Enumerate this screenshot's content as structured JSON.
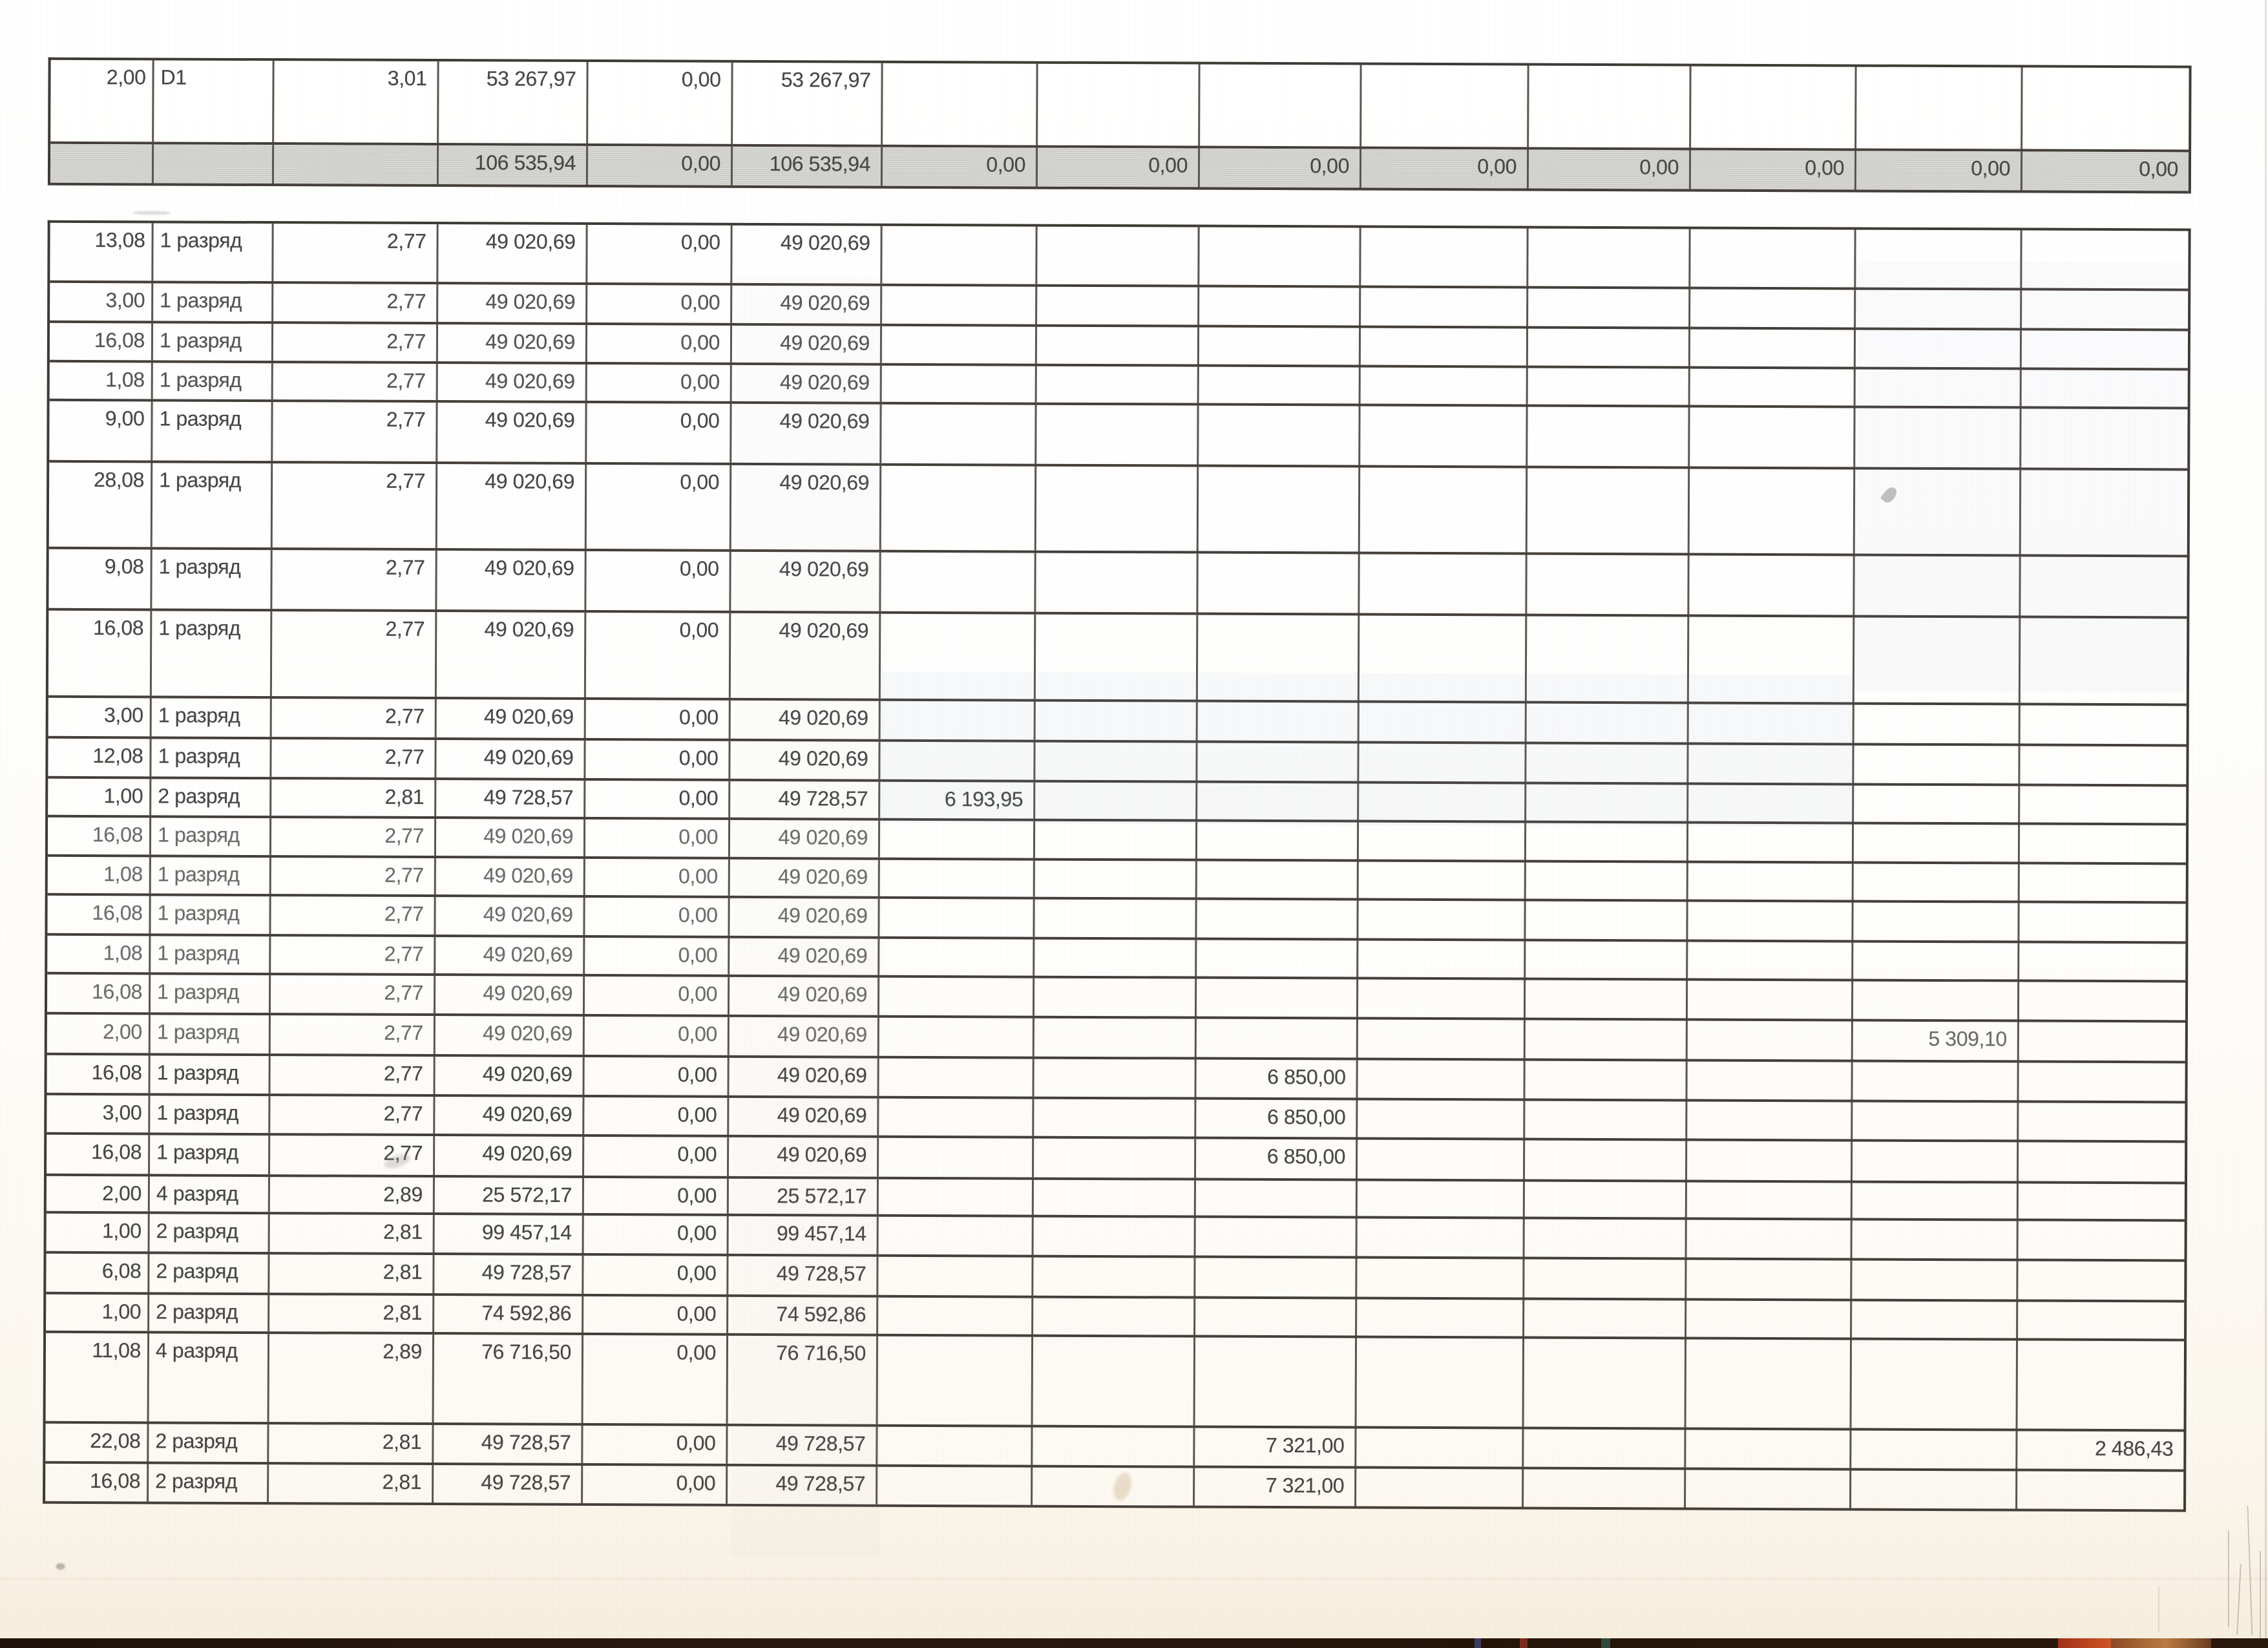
{
  "meta": {
    "description": "Scanned printed payroll table fragment, two table blocks, Russian grade labels",
    "paper_color": "#fbf8f2",
    "line_color": "#443f3a",
    "ink_color": "#474645",
    "total_row_fill": "#dededb",
    "scanner_strip_color": "#2b190f"
  },
  "table1": {
    "rows": [
      {
        "cells": [
          "2,00",
          "D1",
          "3,01",
          "53 267,97",
          "0,00",
          "53 267,97",
          "",
          "",
          "",
          "",
          "",
          "",
          "",
          ""
        ]
      },
      {
        "total": true,
        "cells": [
          "",
          "",
          "",
          "106 535,94",
          "0,00",
          "106 535,94",
          "0,00",
          "0,00",
          "0,00",
          "0,00",
          "0,00",
          "0,00",
          "0,00",
          "0,00"
        ]
      }
    ]
  },
  "table2": {
    "rows": [
      {
        "cells": [
          "13,08",
          "1 разряд",
          "2,77",
          "49 020,69",
          "0,00",
          "49 020,69",
          "",
          "",
          "",
          "",
          "",
          "",
          "",
          ""
        ]
      },
      {
        "cells": [
          "3,00",
          "1 разряд",
          "2,77",
          "49 020,69",
          "0,00",
          "49 020,69",
          "",
          "",
          "",
          "",
          "",
          "",
          "",
          ""
        ]
      },
      {
        "cells": [
          "16,08",
          "1 разряд",
          "2,77",
          "49 020,69",
          "0,00",
          "49 020,69",
          "",
          "",
          "",
          "",
          "",
          "",
          "",
          ""
        ]
      },
      {
        "cells": [
          "1,08",
          "1 разряд",
          "2,77",
          "49 020,69",
          "0,00",
          "49 020,69",
          "",
          "",
          "",
          "",
          "",
          "",
          "",
          ""
        ]
      },
      {
        "cells": [
          "9,00",
          "1 разряд",
          "2,77",
          "49 020,69",
          "0,00",
          "49 020,69",
          "",
          "",
          "",
          "",
          "",
          "",
          "",
          ""
        ]
      },
      {
        "cells": [
          "28,08",
          "1 разряд",
          "2,77",
          "49 020,69",
          "0,00",
          "49 020,69",
          "",
          "",
          "",
          "",
          "",
          "",
          "",
          ""
        ]
      },
      {
        "cells": [
          "9,08",
          "1 разряд",
          "2,77",
          "49 020,69",
          "0,00",
          "49 020,69",
          "",
          "",
          "",
          "",
          "",
          "",
          "",
          ""
        ]
      },
      {
        "cells": [
          "16,08",
          "1 разряд",
          "2,77",
          "49 020,69",
          "0,00",
          "49 020,69",
          "",
          "",
          "",
          "",
          "",
          "",
          "",
          ""
        ]
      },
      {
        "cells": [
          "3,00",
          "1 разряд",
          "2,77",
          "49 020,69",
          "0,00",
          "49 020,69",
          "",
          "",
          "",
          "",
          "",
          "",
          "",
          ""
        ]
      },
      {
        "cells": [
          "12,08",
          "1 разряд",
          "2,77",
          "49 020,69",
          "0,00",
          "49 020,69",
          "",
          "",
          "",
          "",
          "",
          "",
          "",
          ""
        ]
      },
      {
        "cells": [
          "1,00",
          "2 разряд",
          "2,81",
          "49 728,57",
          "0,00",
          "49 728,57",
          "6 193,95",
          "",
          "",
          "",
          "",
          "",
          "",
          ""
        ]
      },
      {
        "cells": [
          "16,08",
          "1 разряд",
          "2,77",
          "49 020,69",
          "0,00",
          "49 020,69",
          "",
          "",
          "",
          "",
          "",
          "",
          "",
          ""
        ]
      },
      {
        "cells": [
          "1,08",
          "1 разряд",
          "2,77",
          "49 020,69",
          "0,00",
          "49 020,69",
          "",
          "",
          "",
          "",
          "",
          "",
          "",
          ""
        ]
      },
      {
        "cells": [
          "16,08",
          "1 разряд",
          "2,77",
          "49 020,69",
          "0,00",
          "49 020,69",
          "",
          "",
          "",
          "",
          "",
          "",
          "",
          ""
        ]
      },
      {
        "cells": [
          "1,08",
          "1 разряд",
          "2,77",
          "49 020,69",
          "0,00",
          "49 020,69",
          "",
          "",
          "",
          "",
          "",
          "",
          "",
          ""
        ]
      },
      {
        "cells": [
          "16,08",
          "1 разряд",
          "2,77",
          "49 020,69",
          "0,00",
          "49 020,69",
          "",
          "",
          "",
          "",
          "",
          "",
          "",
          ""
        ]
      },
      {
        "cells": [
          "2,00",
          "1 разряд",
          "2,77",
          "49 020,69",
          "0,00",
          "49 020,69",
          "",
          "",
          "",
          "",
          "",
          "",
          "5 309,10",
          ""
        ]
      },
      {
        "cells": [
          "16,08",
          "1 разряд",
          "2,77",
          "49 020,69",
          "0,00",
          "49 020,69",
          "",
          "",
          "6 850,00",
          "",
          "",
          "",
          "",
          ""
        ]
      },
      {
        "cells": [
          "3,00",
          "1 разряд",
          "2,77",
          "49 020,69",
          "0,00",
          "49 020,69",
          "",
          "",
          "6 850,00",
          "",
          "",
          "",
          "",
          ""
        ]
      },
      {
        "cells": [
          "16,08",
          "1 разряд",
          "2,77",
          "49 020,69",
          "0,00",
          "49 020,69",
          "",
          "",
          "6 850,00",
          "",
          "",
          "",
          "",
          ""
        ]
      },
      {
        "cells": [
          "2,00",
          "4 разряд",
          "2,89",
          "25 572,17",
          "0,00",
          "25 572,17",
          "",
          "",
          "",
          "",
          "",
          "",
          "",
          ""
        ]
      },
      {
        "cells": [
          "1,00",
          "2 разряд",
          "2,81",
          "99 457,14",
          "0,00",
          "99 457,14",
          "",
          "",
          "",
          "",
          "",
          "",
          "",
          ""
        ]
      },
      {
        "cells": [
          "6,08",
          "2 разряд",
          "2,81",
          "49 728,57",
          "0,00",
          "49 728,57",
          "",
          "",
          "",
          "",
          "",
          "",
          "",
          ""
        ]
      },
      {
        "cells": [
          "1,00",
          "2 разряд",
          "2,81",
          "74 592,86",
          "0,00",
          "74 592,86",
          "",
          "",
          "",
          "",
          "",
          "",
          "",
          ""
        ]
      },
      {
        "cells": [
          "11,08",
          "4 разряд",
          "2,89",
          "76 716,50",
          "0,00",
          "76 716,50",
          "",
          "",
          "",
          "",
          "",
          "",
          "",
          ""
        ]
      },
      {
        "cells": [
          "22,08",
          "2 разряд",
          "2,81",
          "49 728,57",
          "0,00",
          "49 728,57",
          "",
          "",
          "7 321,00",
          "",
          "",
          "",
          "",
          "2 486,43"
        ]
      },
      {
        "cells": [
          "16,08",
          "2 разряд",
          "2,81",
          "49 728,57",
          "0,00",
          "49 728,57",
          "",
          "",
          "7 321,00",
          "",
          "",
          "",
          "",
          ""
        ]
      }
    ]
  }
}
